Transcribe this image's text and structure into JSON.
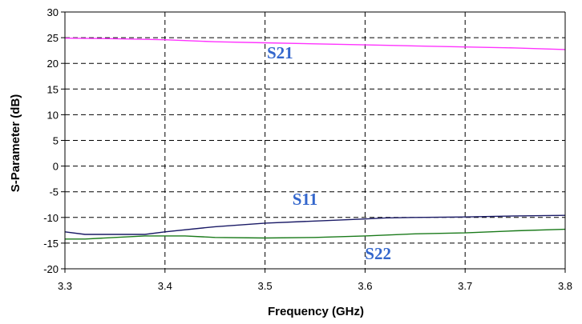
{
  "chart_data": {
    "type": "line",
    "xlabel": "Frequency (GHz)",
    "ylabel": "S-Parameter (dB)",
    "xlim": [
      3.3,
      3.8
    ],
    "ylim": [
      -20,
      30
    ],
    "xticks": [
      "3.3",
      "3.4",
      "3.5",
      "3.6",
      "3.7",
      "3.8"
    ],
    "yticks": [
      "-20",
      "-15",
      "-10",
      "-5",
      "0",
      "5",
      "10",
      "15",
      "20",
      "25",
      "30"
    ],
    "grid": true,
    "series": [
      {
        "name": "S21",
        "color": "#ff33ff",
        "x": [
          3.3,
          3.35,
          3.4,
          3.45,
          3.5,
          3.55,
          3.6,
          3.65,
          3.7,
          3.75,
          3.8
        ],
        "y": [
          24.9,
          24.8,
          24.6,
          24.2,
          24.0,
          23.8,
          23.6,
          23.4,
          23.2,
          23.0,
          22.7
        ]
      },
      {
        "name": "S11",
        "color": "#1a1a66",
        "x": [
          3.3,
          3.32,
          3.35,
          3.38,
          3.4,
          3.45,
          3.5,
          3.55,
          3.6,
          3.62,
          3.65,
          3.7,
          3.75,
          3.8
        ],
        "y": [
          -12.8,
          -13.3,
          -13.3,
          -13.3,
          -12.8,
          -11.8,
          -11.1,
          -10.7,
          -10.3,
          -10.1,
          -10.0,
          -9.9,
          -9.7,
          -9.6
        ]
      },
      {
        "name": "S22",
        "color": "#1a7a1a",
        "x": [
          3.3,
          3.32,
          3.35,
          3.38,
          3.4,
          3.42,
          3.45,
          3.5,
          3.55,
          3.6,
          3.65,
          3.7,
          3.75,
          3.8
        ],
        "y": [
          -14.2,
          -14.2,
          -13.9,
          -13.6,
          -13.6,
          -13.6,
          -13.9,
          -14.0,
          -13.9,
          -13.6,
          -13.2,
          -13.0,
          -12.6,
          -12.3
        ]
      }
    ],
    "annotations": [
      {
        "text": "S21",
        "x": 3.515,
        "y": 21.0
      },
      {
        "text": "S11",
        "x": 3.54,
        "y": -7.5
      },
      {
        "text": "S22",
        "x": 3.613,
        "y": -18.1
      }
    ],
    "label_color": "#3366cc"
  }
}
